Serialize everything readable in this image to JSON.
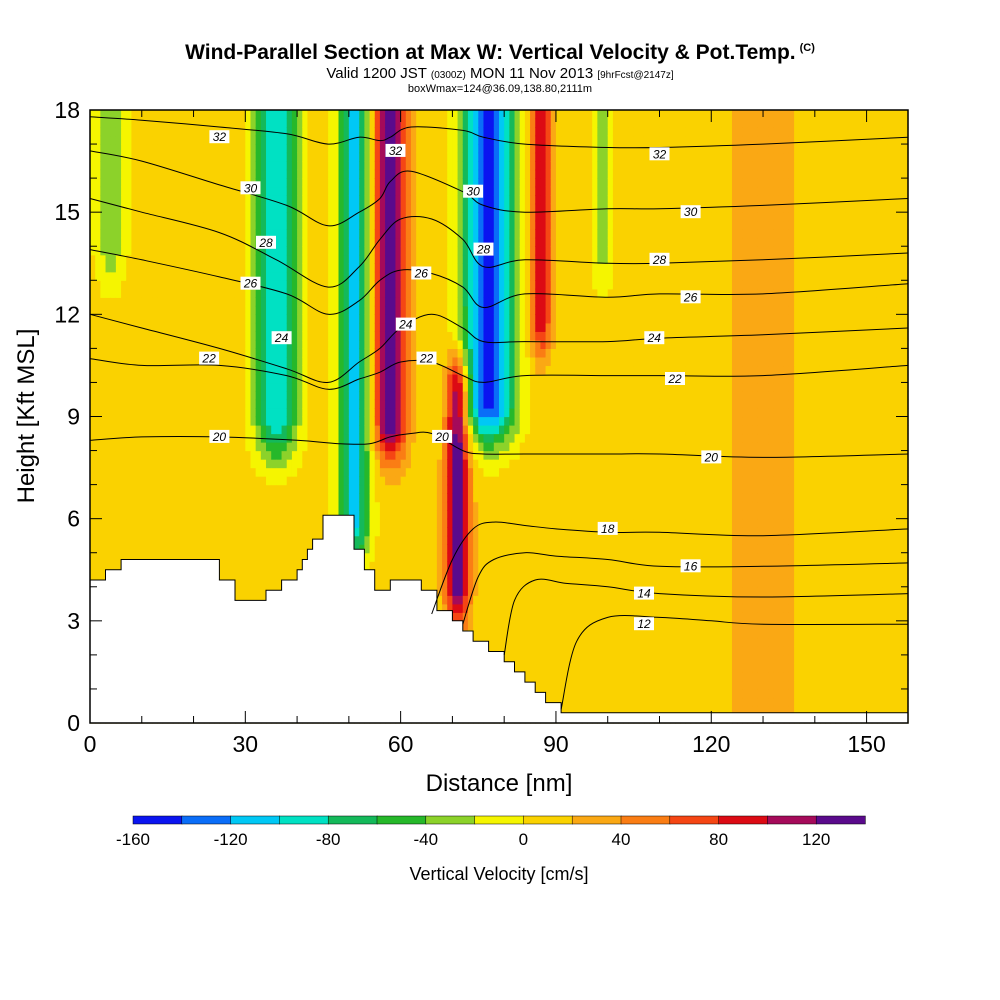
{
  "title": "Wind-Parallel Section at Max W: Vertical Velocity & Pot.Temp.",
  "title_mark": "(C)",
  "subtitle_a": "Valid 1200 JST",
  "subtitle_b": "(0300Z)",
  "subtitle_c": "MON 11 Nov 2013",
  "subtitle_d": "[9hrFcst@2147z]",
  "subtitle2": "boxWmax=124@36.09,138.80,2111m",
  "chart_data": {
    "type": "contour",
    "xlabel": "Distance [nm]",
    "ylabel": "Height [Kft MSL]",
    "colorbar_label": "Vertical Velocity [cm/s]",
    "xlim": [
      0,
      158
    ],
    "ylim": [
      0,
      18
    ],
    "xticks": [
      0,
      30,
      60,
      90,
      120,
      150
    ],
    "yticks": [
      0,
      3,
      6,
      9,
      12,
      15,
      18
    ],
    "colorbar_ticks": [
      "-160",
      "-120",
      "-80",
      "-40",
      "0",
      "40",
      "80",
      "120"
    ],
    "colorbar_colors": [
      "#0a14f0",
      "#0a6ef8",
      "#00c8f5",
      "#00e1c3",
      "#14b95a",
      "#26b82a",
      "#8cd22a",
      "#f5f500",
      "#fad200",
      "#faa814",
      "#fa7d14",
      "#f54614",
      "#dc0a14",
      "#a50a5a",
      "#5a0a8c"
    ],
    "colorbar_range": [
      -160,
      140
    ],
    "background_w": 10,
    "w_features": [
      {
        "x": 4,
        "y0": 14,
        "y1": 18,
        "w": -40,
        "width": 3
      },
      {
        "x": 36,
        "y0": 9,
        "y1": 18,
        "w": -110,
        "width": 4
      },
      {
        "x": 51,
        "y0": 6,
        "y1": 18,
        "w": -115,
        "width": 3
      },
      {
        "x": 58,
        "y0": 9,
        "y1": 18,
        "w": 135,
        "width": 3
      },
      {
        "x": 77,
        "y0": 9.5,
        "y1": 18,
        "w": -160,
        "width": 5
      },
      {
        "x": 71,
        "y0": 4.2,
        "y1": 9.5,
        "w": 135,
        "width": 2.2
      },
      {
        "x": 87,
        "y0": 12,
        "y1": 18,
        "w": 90,
        "width": 2
      },
      {
        "x": 99,
        "y0": 14,
        "y1": 18,
        "w": -40,
        "width": 2
      },
      {
        "x": 130,
        "y0": 0,
        "y1": 18,
        "w": 25,
        "width": 6
      }
    ],
    "terrain": [
      [
        0,
        4.2
      ],
      [
        3,
        4.2
      ],
      [
        3,
        4.5
      ],
      [
        6,
        4.5
      ],
      [
        6,
        4.8
      ],
      [
        25,
        4.8
      ],
      [
        25,
        4.2
      ],
      [
        28,
        4.2
      ],
      [
        28,
        3.6
      ],
      [
        34,
        3.6
      ],
      [
        34,
        3.9
      ],
      [
        37,
        3.9
      ],
      [
        37,
        4.2
      ],
      [
        40,
        4.2
      ],
      [
        40,
        4.5
      ],
      [
        41,
        4.5
      ],
      [
        41,
        4.8
      ],
      [
        42,
        4.8
      ],
      [
        42,
        5.1
      ],
      [
        43,
        5.1
      ],
      [
        43,
        5.4
      ],
      [
        45,
        5.4
      ],
      [
        45,
        6.1
      ],
      [
        51,
        6.1
      ],
      [
        51,
        5.1
      ],
      [
        53,
        5.1
      ],
      [
        53,
        4.5
      ],
      [
        55,
        4.5
      ],
      [
        55,
        3.9
      ],
      [
        58,
        3.9
      ],
      [
        58,
        4.2
      ],
      [
        64,
        4.2
      ],
      [
        64,
        3.9
      ],
      [
        67,
        3.9
      ],
      [
        67,
        3.3
      ],
      [
        70,
        3.3
      ],
      [
        70,
        3.0
      ],
      [
        72,
        3.0
      ],
      [
        72,
        2.7
      ],
      [
        74,
        2.7
      ],
      [
        74,
        2.4
      ],
      [
        77,
        2.4
      ],
      [
        77,
        2.1
      ],
      [
        80,
        2.1
      ],
      [
        80,
        1.8
      ],
      [
        82,
        1.8
      ],
      [
        82,
        1.5
      ],
      [
        84,
        1.5
      ],
      [
        84,
        1.2
      ],
      [
        86,
        1.2
      ],
      [
        86,
        0.9
      ],
      [
        88,
        0.9
      ],
      [
        88,
        0.6
      ],
      [
        91,
        0.6
      ],
      [
        91,
        0.3
      ],
      [
        158,
        0.3
      ]
    ],
    "theta_contours": [
      {
        "label": "32",
        "x": [
          0,
          10,
          25,
          38,
          46,
          52,
          56,
          58,
          62,
          72,
          76,
          84,
          100,
          110,
          130,
          158
        ],
        "y": [
          17.8,
          17.7,
          17.5,
          17.3,
          17.0,
          17.2,
          17.1,
          17.2,
          17.5,
          17.4,
          17.2,
          17.0,
          16.9,
          16.9,
          17.0,
          17.2
        ]
      },
      {
        "label": "30",
        "x": [
          0,
          10,
          25,
          38,
          46,
          52,
          56,
          58,
          62,
          72,
          76,
          84,
          100,
          110,
          130,
          158
        ],
        "y": [
          16.8,
          16.5,
          15.8,
          15.2,
          14.6,
          15.0,
          15.4,
          15.9,
          16.2,
          15.6,
          15.2,
          15.0,
          15.1,
          15.1,
          15.2,
          15.4
        ]
      },
      {
        "label": "28",
        "x": [
          0,
          10,
          25,
          36,
          46,
          52,
          56,
          60,
          66,
          72,
          76,
          84,
          100,
          110,
          130,
          158
        ],
        "y": [
          15.4,
          15.0,
          14.4,
          13.6,
          12.8,
          13.4,
          14.2,
          14.8,
          14.8,
          14.2,
          13.4,
          13.6,
          13.5,
          13.5,
          13.6,
          13.8
        ]
      },
      {
        "label": "26",
        "x": [
          0,
          10,
          25,
          38,
          46,
          52,
          56,
          60,
          66,
          72,
          76,
          84,
          100,
          110,
          130,
          158
        ],
        "y": [
          13.9,
          13.6,
          13.1,
          12.6,
          12.0,
          12.4,
          13.0,
          13.3,
          13.2,
          12.8,
          12.2,
          12.6,
          12.5,
          12.6,
          12.6,
          12.9
        ]
      },
      {
        "label": "24",
        "x": [
          0,
          10,
          25,
          38,
          46,
          52,
          56,
          60,
          66,
          72,
          76,
          84,
          100,
          110,
          130,
          158
        ],
        "y": [
          12.0,
          11.6,
          11.0,
          10.4,
          10.0,
          10.6,
          11.0,
          11.6,
          12.0,
          11.6,
          11.2,
          11.2,
          11.2,
          11.3,
          11.4,
          11.6
        ]
      },
      {
        "label": "22",
        "x": [
          0,
          10,
          25,
          38,
          46,
          52,
          56,
          60,
          66,
          72,
          76,
          84,
          100,
          110,
          130,
          158
        ],
        "y": [
          10.7,
          10.5,
          10.5,
          10.2,
          9.8,
          10.1,
          10.3,
          10.6,
          10.6,
          10.2,
          10.0,
          10.2,
          10.2,
          10.2,
          10.2,
          10.5
        ]
      },
      {
        "label": "20",
        "x": [
          0,
          10,
          25,
          40,
          48,
          54,
          58,
          62,
          66,
          72,
          76,
          84,
          100,
          110,
          130,
          158
        ],
        "y": [
          8.3,
          8.4,
          8.4,
          8.3,
          8.2,
          8.2,
          8.4,
          8.5,
          8.5,
          8.0,
          7.9,
          7.9,
          7.9,
          7.9,
          7.8,
          7.9
        ]
      },
      {
        "label": "18",
        "x": [
          66,
          70,
          74,
          78,
          84,
          90,
          100,
          110,
          130,
          158
        ],
        "y": [
          3.2,
          4.8,
          5.7,
          5.9,
          5.8,
          5.7,
          5.6,
          5.6,
          5.5,
          5.7
        ]
      },
      {
        "label": "16",
        "x": [
          72,
          75,
          78,
          84,
          90,
          100,
          110,
          130,
          158
        ],
        "y": [
          2.9,
          4.3,
          4.8,
          5.0,
          4.9,
          4.8,
          4.6,
          4.6,
          4.7
        ]
      },
      {
        "label": "14",
        "x": [
          80,
          82,
          86,
          92,
          100,
          110,
          130,
          158
        ],
        "y": [
          2.0,
          3.6,
          4.2,
          4.1,
          4.0,
          3.8,
          3.7,
          3.8
        ]
      },
      {
        "label": "12",
        "x": [
          91,
          94,
          100,
          110,
          120,
          130,
          158
        ],
        "y": [
          0.4,
          2.4,
          3.1,
          3.1,
          3.0,
          2.9,
          2.9
        ]
      }
    ],
    "theta_labels": [
      {
        "text": "32",
        "x": 25,
        "y": 17.2
      },
      {
        "text": "30",
        "x": 31,
        "y": 15.7
      },
      {
        "text": "28",
        "x": 34,
        "y": 14.1
      },
      {
        "text": "26",
        "x": 31,
        "y": 12.9
      },
      {
        "text": "24",
        "x": 37,
        "y": 11.3
      },
      {
        "text": "22",
        "x": 23,
        "y": 10.7
      },
      {
        "text": "20",
        "x": 25,
        "y": 8.4
      },
      {
        "text": "32",
        "x": 59,
        "y": 16.8
      },
      {
        "text": "30",
        "x": 74,
        "y": 15.6
      },
      {
        "text": "28",
        "x": 76,
        "y": 13.9
      },
      {
        "text": "26",
        "x": 64,
        "y": 13.2
      },
      {
        "text": "24",
        "x": 61,
        "y": 11.7
      },
      {
        "text": "22",
        "x": 65,
        "y": 10.7
      },
      {
        "text": "20",
        "x": 68,
        "y": 8.4
      },
      {
        "text": "32",
        "x": 110,
        "y": 16.7
      },
      {
        "text": "30",
        "x": 116,
        "y": 15.0
      },
      {
        "text": "28",
        "x": 110,
        "y": 13.6
      },
      {
        "text": "26",
        "x": 116,
        "y": 12.5
      },
      {
        "text": "24",
        "x": 109,
        "y": 11.3
      },
      {
        "text": "22",
        "x": 113,
        "y": 10.1
      },
      {
        "text": "20",
        "x": 120,
        "y": 7.8
      },
      {
        "text": "18",
        "x": 100,
        "y": 5.7
      },
      {
        "text": "16",
        "x": 116,
        "y": 4.6
      },
      {
        "text": "14",
        "x": 107,
        "y": 3.8
      },
      {
        "text": "12",
        "x": 107,
        "y": 2.9
      }
    ]
  }
}
